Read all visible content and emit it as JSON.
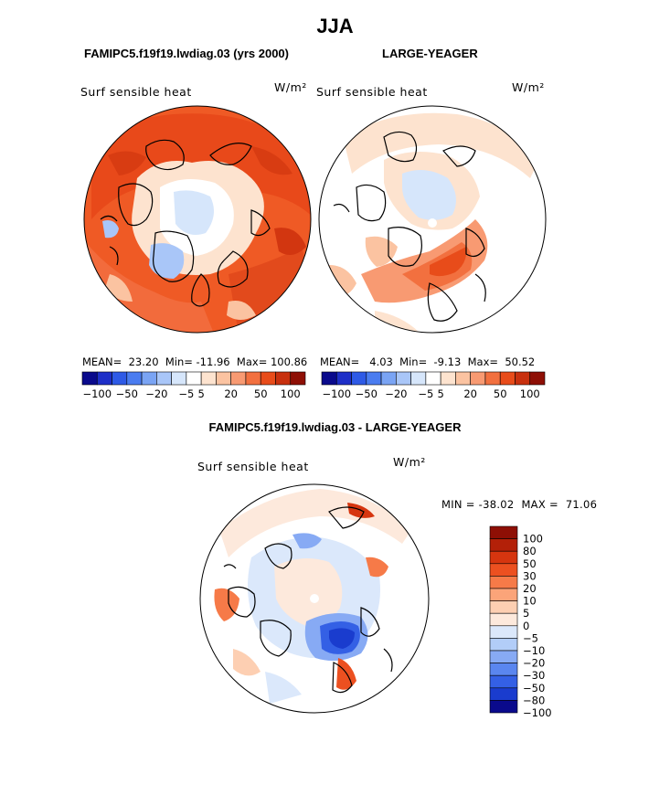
{
  "page": {
    "season": "JJA",
    "left_title": "FAMIPC5.f19f19.lwdiag.03 (yrs 2000)",
    "right_title": "LARGE-YEAGER",
    "diff_title": "FAMIPC5.f19f19.lwdiag.03 - LARGE-YEAGER"
  },
  "panels": {
    "left": {
      "variable": "Surf sensible heat",
      "units": "W/m²",
      "stats": "MEAN=  23.20  Min= -11.96  Max= 100.86"
    },
    "right": {
      "variable": "Surf sensible heat",
      "units": "W/m²",
      "stats": "MEAN=   4.03  Min=  -9.13  Max=  50.52"
    },
    "diff": {
      "variable": "Surf sensible heat",
      "units": "W/m²",
      "stats": "MIN = -38.02  MAX =  71.06"
    }
  },
  "chart_data": [
    {
      "type": "heatmap",
      "title": "FAMIPC5.f19f19.lwdiag.03 (yrs 2000)",
      "variable": "Surf sensible heat",
      "units": "W/m²",
      "projection": "north polar stereographic",
      "mean": 23.2,
      "min": -11.96,
      "max": 100.86,
      "contour_levels": [
        -100,
        -75,
        -50,
        -30,
        -20,
        -10,
        -5,
        0,
        5,
        10,
        20,
        30,
        50,
        75,
        100
      ],
      "colorbar_labels": [
        "−100",
        "−50",
        "−20",
        "−5",
        "5",
        "20",
        "50",
        "100"
      ],
      "colors": [
        "#0a0a8c",
        "#1e2fc8",
        "#2e5ae6",
        "#4a7cf0",
        "#7aa4f4",
        "#a9c6f8",
        "#d6e6fb",
        "#ffffff",
        "#fde3cf",
        "#fbc3a1",
        "#f89a72",
        "#f2703f",
        "#e84c1a",
        "#c8300e",
        "#8e0f05"
      ]
    },
    {
      "type": "heatmap",
      "title": "LARGE-YEAGER",
      "variable": "Surf sensible heat",
      "units": "W/m²",
      "projection": "north polar stereographic",
      "mean": 4.03,
      "min": -9.13,
      "max": 50.52,
      "contour_levels": [
        -100,
        -75,
        -50,
        -30,
        -20,
        -10,
        -5,
        0,
        5,
        10,
        20,
        30,
        50,
        75,
        100
      ],
      "colorbar_labels": [
        "−100",
        "−50",
        "−20",
        "−5",
        "5",
        "20",
        "50",
        "100"
      ],
      "colors": [
        "#0a0a8c",
        "#1e2fc8",
        "#2e5ae6",
        "#4a7cf0",
        "#7aa4f4",
        "#a9c6f8",
        "#d6e6fb",
        "#ffffff",
        "#fde3cf",
        "#fbc3a1",
        "#f89a72",
        "#f2703f",
        "#e84c1a",
        "#c8300e",
        "#8e0f05"
      ]
    },
    {
      "type": "heatmap",
      "title": "FAMIPC5.f19f19.lwdiag.03 - LARGE-YEAGER",
      "variable": "Surf sensible heat",
      "units": "W/m²",
      "projection": "north polar stereographic",
      "min": -38.02,
      "max": 71.06,
      "contour_levels": [
        100,
        80,
        50,
        30,
        20,
        10,
        5,
        0,
        -5,
        -10,
        -20,
        -30,
        -50,
        -80,
        -100
      ],
      "colorbar_labels": [
        "100",
        "80",
        "50",
        "30",
        "20",
        "10",
        "5",
        "0",
        "−5",
        "−10",
        "−20",
        "−30",
        "−50",
        "−80",
        "−100"
      ],
      "colors": [
        "#8e0f05",
        "#b32008",
        "#d6350f",
        "#ec5020",
        "#f67a48",
        "#fba479",
        "#fdcfb2",
        "#fde9dc",
        "#dbe8fb",
        "#b2cdf8",
        "#87aaf4",
        "#5a86ef",
        "#3460e5",
        "#1a3cce",
        "#0a0a8c"
      ]
    }
  ]
}
